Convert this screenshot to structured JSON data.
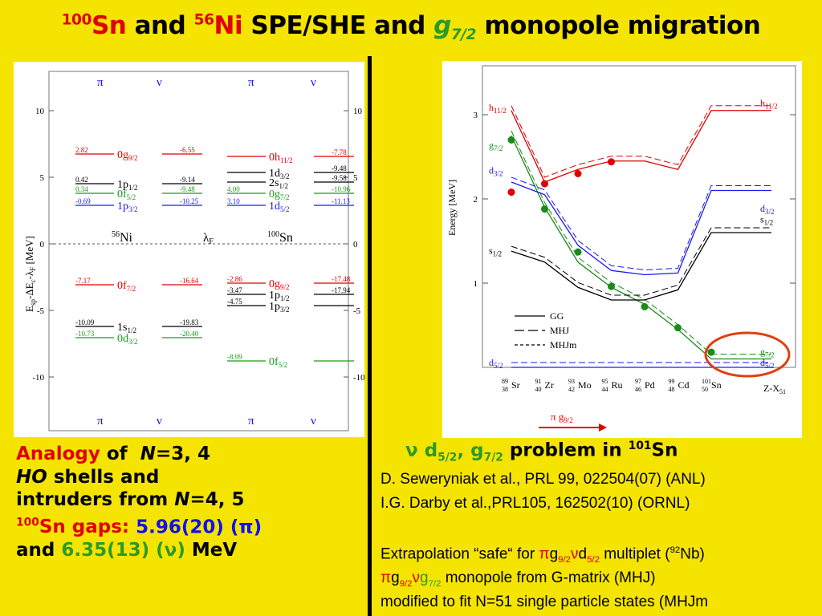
{
  "title": {
    "mass_sn": "100",
    "sn": "Sn",
    "and1": "and",
    "mass_ni": "56",
    "ni": "Ni",
    "middle": "SPE/SHE and",
    "g": "g",
    "g_sub": "7/2",
    "rest": "monopole migration"
  },
  "left_chart": {
    "header_pi": "π",
    "header_nu": "ν",
    "footer_pi": "π",
    "footer_nu": "ν",
    "y_ticks": [
      "10",
      "5",
      "0",
      "-5",
      "-10"
    ],
    "ylabel": "E",
    "ylabel_sub": "sp",
    "ylabel_rest": "-ΔE",
    "ylabel_sub2": "c",
    "ylabel_rest2": "-λ",
    "ylabel_sub3": "F",
    "ylabel_unit": "[MeV]",
    "ni_label": "Ni",
    "ni_mass": "56",
    "lambda": "λ",
    "lambda_sub": "F",
    "sn_label": "Sn",
    "sn_mass": "100",
    "ni_levels": [
      {
        "left": "2.82",
        "orb": "0g",
        "sub": "9/2",
        "right": "-6.55",
        "color": "red"
      },
      {
        "left": "0.42",
        "orb": "1p",
        "sub": "1/2",
        "right": "-9.14",
        "color": "black"
      },
      {
        "left": "0.34",
        "orb": "0f",
        "sub": "5/2",
        "right": "-9.48",
        "color": "green"
      },
      {
        "left": "-0.69",
        "orb": "1p",
        "sub": "3/2",
        "right": "-10.25",
        "color": "blue"
      },
      {
        "left": "-7.17",
        "orb": "0f",
        "sub": "7/2",
        "right": "-16.64",
        "color": "red"
      },
      {
        "left": "-10.09",
        "orb": "1s",
        "sub": "1/2",
        "right": "-19.83",
        "color": "black"
      },
      {
        "left": "-10.73",
        "orb": "0d",
        "sub": "3/2",
        "right": "-20.40",
        "color": "green"
      }
    ],
    "sn_levels": [
      {
        "left": "",
        "orb": "0h",
        "sub": "11/2",
        "right": "-7.78",
        "color": "red"
      },
      {
        "left": "",
        "orb": "1d",
        "sub": "3/2",
        "right": "-9.48",
        "color": "black"
      },
      {
        "left": "",
        "orb": "2s",
        "sub": "1/2",
        "right": "-9.58",
        "color": "black"
      },
      {
        "left": "4.00",
        "orb": "0g",
        "sub": "7/2",
        "right": "-10.96",
        "color": "green"
      },
      {
        "left": "3.10",
        "orb": "1d",
        "sub": "5/2",
        "right": "-11.13",
        "color": "blue"
      },
      {
        "left": "-2.86",
        "orb": "0g",
        "sub": "9/2",
        "right": "-17.48",
        "color": "red"
      },
      {
        "left": "-3.47",
        "orb": "1p",
        "sub": "1/2",
        "right": "-17.94",
        "color": "black"
      },
      {
        "left": "-4.75",
        "orb": "1p",
        "sub": "3/2",
        "right": "",
        "color": "black"
      },
      {
        "left": "-8.99",
        "orb": "0f",
        "sub": "5/2",
        "right": "",
        "color": "green"
      }
    ]
  },
  "chart_data": {
    "type": "line",
    "ylabel": "Energy [MeV]",
    "y_ticks": [
      "1",
      "2",
      "3"
    ],
    "ylim": [
      0,
      3.4
    ],
    "categories": [
      "Sr",
      "Zr",
      "Mo",
      "Ru",
      "Pd",
      "Cd",
      "Sn"
    ],
    "category_labels": [
      {
        "mass": "89",
        "z": "38",
        "el": "Sr"
      },
      {
        "mass": "91",
        "z": "40",
        "el": "Zr"
      },
      {
        "mass": "93",
        "z": "42",
        "el": "Mo"
      },
      {
        "mass": "95",
        "z": "44",
        "el": "Ru"
      },
      {
        "mass": "97",
        "z": "46",
        "el": "Pd"
      },
      {
        "mass": "99",
        "z": "48",
        "el": "Cd"
      },
      {
        "mass": "101",
        "z": "50",
        "el": "Sn"
      }
    ],
    "end_label": "Z-X",
    "end_label_sub": "51",
    "level_labels": {
      "h11": "h",
      "h11_sub": "11/2",
      "g7": "g",
      "g7_sub": "7/2",
      "d3": "d",
      "d3_sub": "3/2",
      "s1": "s",
      "s1_sub": "1/2",
      "d5": "d",
      "d5_sub": "5/2"
    },
    "right_labels": {
      "h11": "h",
      "h11_sub": "11/2",
      "d3": "d",
      "d3_sub": "3/2",
      "s1": "s",
      "s1_sub": "1/2",
      "g7": "g",
      "g7_sub": "7/2",
      "d5": "d",
      "d5_sub": "5/2"
    },
    "legend": [
      "GG",
      "MHJ",
      "MHJm"
    ],
    "pi_label": "π g",
    "pi_label_sub": "9/2",
    "series": [
      {
        "name": "h11/2",
        "color": "#e00000",
        "exp": [
          2.08,
          2.18,
          2.3,
          2.44
        ],
        "calc": [
          3.05,
          2.2,
          2.35,
          2.45,
          2.45,
          2.35,
          3.05,
          3.05
        ]
      },
      {
        "name": "g7/2",
        "color": "#1a8a1a",
        "exp": [
          2.7,
          1.88,
          1.37,
          0.96,
          0.72,
          0.47,
          0.18
        ],
        "calc": [
          2.75,
          1.9,
          1.25,
          0.95,
          0.75,
          0.45,
          0.1,
          0.1
        ]
      },
      {
        "name": "d3/2",
        "color": "#1a1aee",
        "calc": [
          2.2,
          2.05,
          1.45,
          1.15,
          1.1,
          1.12,
          2.1,
          2.1
        ]
      },
      {
        "name": "s1/2",
        "color": "#000000",
        "calc": [
          1.38,
          1.25,
          0.95,
          0.8,
          0.8,
          0.92,
          1.6,
          1.6
        ]
      },
      {
        "name": "d5/2",
        "color": "#1a1aee",
        "calc": [
          0,
          0,
          0,
          0,
          0,
          0,
          0,
          0
        ]
      }
    ]
  },
  "analogy": {
    "w1": "Analogy",
    "w2": "of",
    "w3": "N",
    "w4": "=3, 4",
    "l2a": "HO",
    "l2b": "shells and",
    "l3a": "intruders from",
    "l3b": "N",
    "l3c": "=4, 5",
    "mass": "100",
    "sn": "Sn gaps:",
    "v1": "5.96(20)",
    "p1": "(π)",
    "and": "and",
    "v2": "6.35(13)",
    "p2": "(ν)",
    "mev": "MeV"
  },
  "problem": {
    "nu": "ν",
    "d": "d",
    "d_sub": "5/2",
    "comma": ",",
    "g": "g",
    "g_sub": "7/2",
    "text": "problem in",
    "mass": "101",
    "sn": "Sn"
  },
  "refs": {
    "r1": "D. Seweryniak et al., PRL 99, 022504(07) (ANL)",
    "r2": "I.G. Darby et al.,PRL105, 162502(10) (ORNL)"
  },
  "extrap": {
    "a": "Extrapolation “safe“ for ",
    "pi": "π",
    "g": "g",
    "g_sub": "9/2",
    "nu": "ν",
    "d": "d",
    "d_sub": "5/2",
    "b": " multiplet (",
    "mass": "92",
    "nb": "Nb)",
    "c_pi": "π",
    "c_g": "g",
    "c_g_sub": "9/2",
    "c_nu": "ν",
    "c_g2": "g",
    "c_g2_sub": "7/2",
    "c": " monopole from G-matrix (MHJ)",
    "d_line": "modified to fit N=51 single particle states (MHJm"
  }
}
